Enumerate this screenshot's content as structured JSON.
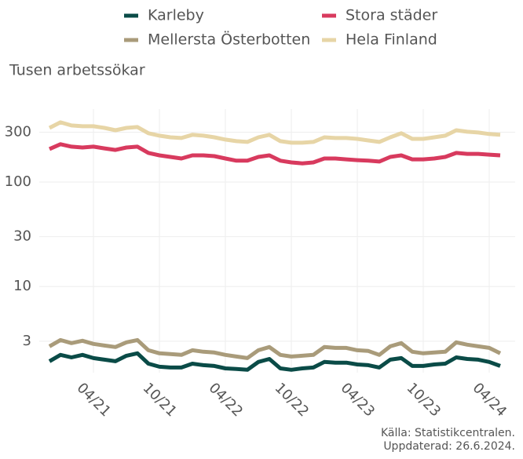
{
  "chart_data": {
    "type": "line",
    "y_label": "Tusen arbetssökar",
    "source": [
      "Källa: Statistikcentralen.",
      "Uppdaterad: 26.6.2024."
    ],
    "log_y": true,
    "grid": true,
    "categories": [
      null,
      null,
      null,
      null,
      "04/21",
      null,
      null,
      null,
      null,
      null,
      "10/21",
      null,
      null,
      null,
      null,
      null,
      "04/22",
      null,
      null,
      null,
      null,
      null,
      "10/22",
      null,
      null,
      null,
      null,
      null,
      "04/23",
      null,
      null,
      null,
      null,
      null,
      "10/23",
      null,
      null,
      null,
      null,
      null,
      "04/24",
      null
    ],
    "ylim": [
      1.5,
      420
    ],
    "yticks": [
      3,
      10,
      30,
      100,
      300
    ],
    "series": [
      {
        "name": "Karleby",
        "color": "#0a4b47",
        "values": [
          1.93,
          2.22,
          2.1,
          2.22,
          2.07,
          2.0,
          1.93,
          2.18,
          2.3,
          1.83,
          1.71,
          1.68,
          1.68,
          1.83,
          1.77,
          1.74,
          1.65,
          1.63,
          1.6,
          1.9,
          2.03,
          1.65,
          1.6,
          1.65,
          1.68,
          1.9,
          1.87,
          1.87,
          1.8,
          1.77,
          1.68,
          2.0,
          2.07,
          1.74,
          1.74,
          1.8,
          1.83,
          2.1,
          2.03,
          2.0,
          1.9,
          1.74
        ]
      },
      {
        "name": "Stora städer",
        "color": "#d83a5e",
        "values": [
          207,
          230,
          218,
          214,
          218,
          210,
          203,
          214,
          218,
          190,
          180,
          174,
          168,
          180,
          180,
          177,
          168,
          160,
          160,
          174,
          180,
          160,
          154,
          151,
          154,
          168,
          168,
          165,
          162,
          160,
          157,
          174,
          180,
          165,
          165,
          168,
          174,
          190,
          186,
          186,
          183,
          180
        ]
      },
      {
        "name": "Mellersta Österbotten",
        "color": "#a99b7a",
        "values": [
          2.68,
          3.08,
          2.88,
          3.03,
          2.83,
          2.73,
          2.64,
          2.93,
          3.08,
          2.46,
          2.3,
          2.26,
          2.22,
          2.46,
          2.38,
          2.34,
          2.22,
          2.14,
          2.07,
          2.46,
          2.64,
          2.22,
          2.14,
          2.18,
          2.22,
          2.64,
          2.59,
          2.59,
          2.46,
          2.42,
          2.22,
          2.68,
          2.88,
          2.38,
          2.3,
          2.34,
          2.38,
          2.93,
          2.78,
          2.68,
          2.59,
          2.3
        ]
      },
      {
        "name": "Hela Finland",
        "color": "#e7d5a6",
        "values": [
          330,
          373,
          348,
          342,
          342,
          330,
          313,
          330,
          336,
          293,
          278,
          268,
          264,
          283,
          278,
          268,
          255,
          246,
          242,
          268,
          283,
          246,
          238,
          238,
          242,
          268,
          264,
          264,
          259,
          250,
          242,
          268,
          293,
          259,
          259,
          268,
          278,
          313,
          303,
          298,
          288,
          283
        ]
      }
    ]
  }
}
